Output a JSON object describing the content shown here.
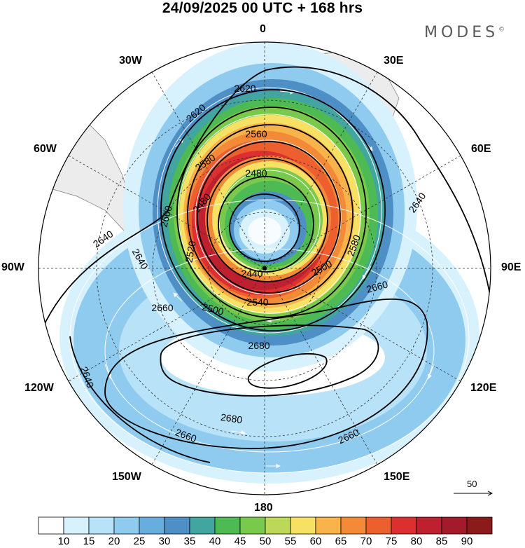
{
  "title": "24/09/2025  00 UTC  + 168 hrs",
  "brand": {
    "name": "MODES",
    "mark": "©"
  },
  "longitude_labels": [
    {
      "id": "0",
      "text": "0"
    },
    {
      "id": "30e",
      "text": "30E"
    },
    {
      "id": "60e",
      "text": "60E"
    },
    {
      "id": "90e",
      "text": "90E"
    },
    {
      "id": "120e",
      "text": "120E"
    },
    {
      "id": "150e",
      "text": "150E"
    },
    {
      "id": "180",
      "text": "180"
    },
    {
      "id": "150w",
      "text": "150W"
    },
    {
      "id": "120w",
      "text": "120W"
    },
    {
      "id": "90w",
      "text": "90W"
    },
    {
      "id": "60w",
      "text": "60W"
    },
    {
      "id": "30w",
      "text": "30W"
    }
  ],
  "contour_labels": [
    "2620",
    "2620",
    "2560",
    "2580",
    "2480",
    "2600",
    "2480",
    "2640",
    "2640",
    "2640",
    "2640",
    "2440",
    "2500",
    "2580",
    "2520",
    "2660",
    "2500",
    "2540",
    "2660",
    "2680",
    "2680",
    "2660",
    "2660"
  ],
  "vector_reference": {
    "value": "50"
  },
  "colorbar": {
    "colors": [
      "#ffffff",
      "#d7f1fd",
      "#b7e2f8",
      "#8fcbef",
      "#67aedf",
      "#4e90c6",
      "#42a5a0",
      "#4dba53",
      "#79c94c",
      "#bcd858",
      "#f7e164",
      "#f8b44a",
      "#f38a38",
      "#ee5f2f",
      "#dc3030",
      "#be2030",
      "#a31a2a",
      "#8b1a1a"
    ],
    "labels": [
      "10",
      "15",
      "20",
      "25",
      "30",
      "35",
      "40",
      "45",
      "50",
      "55",
      "60",
      "65",
      "70",
      "75",
      "80",
      "85",
      "90"
    ]
  }
}
